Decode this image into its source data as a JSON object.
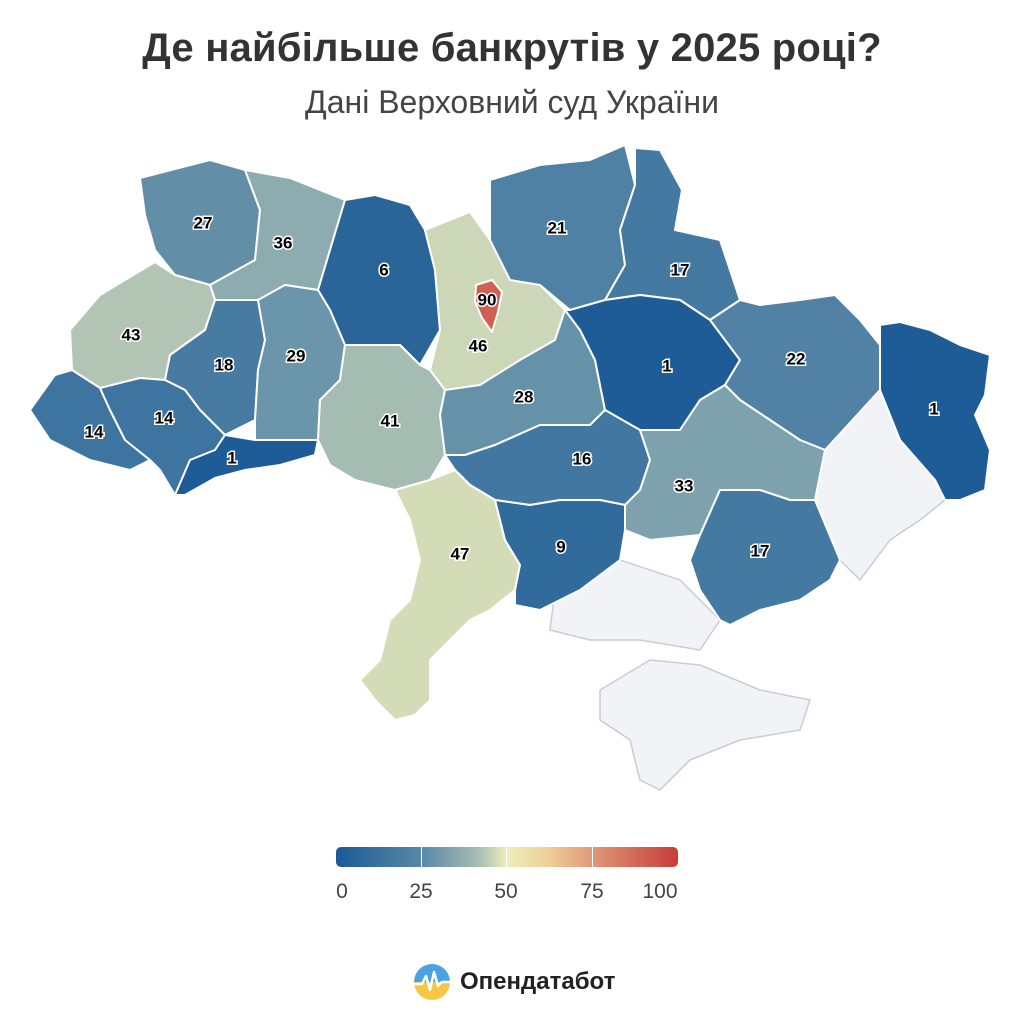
{
  "header": {
    "title": "Де найбільше банкрутів у 2025 році?",
    "subtitle": "Дані Верховний суд України"
  },
  "map_data": {
    "type": "choropleth",
    "regions": [
      {
        "name": "Volyn",
        "value": 27
      },
      {
        "name": "Rivne",
        "value": 36
      },
      {
        "name": "Zhytomyr",
        "value": 6
      },
      {
        "name": "Kyiv city",
        "value": 90
      },
      {
        "name": "Kyiv oblast",
        "value": 46
      },
      {
        "name": "Chernihiv",
        "value": 21
      },
      {
        "name": "Sumy",
        "value": 17
      },
      {
        "name": "Lviv",
        "value": 43
      },
      {
        "name": "Ternopil",
        "value": 18
      },
      {
        "name": "Khmelnytskyi",
        "value": 29
      },
      {
        "name": "Zakarpattia",
        "value": 14
      },
      {
        "name": "Ivano-Frankivsk",
        "value": 14
      },
      {
        "name": "Chernivtsi",
        "value": 1
      },
      {
        "name": "Vinnytsia",
        "value": 41
      },
      {
        "name": "Cherkasy",
        "value": 28
      },
      {
        "name": "Poltava",
        "value": 1
      },
      {
        "name": "Kharkiv",
        "value": 22
      },
      {
        "name": "Luhansk",
        "value": 1
      },
      {
        "name": "Kirovohrad",
        "value": 16
      },
      {
        "name": "Dnipropetrovsk",
        "value": 33
      },
      {
        "name": "Odesa",
        "value": 47
      },
      {
        "name": "Mykolaiv",
        "value": 9
      },
      {
        "name": "Zaporizhzhia",
        "value": 17
      }
    ],
    "no_data_color": "#f2f3f7",
    "color_scale": [
      "#1b5a96",
      "#5888a7",
      "#eeeeba",
      "#e7a07c",
      "#c63c38"
    ]
  },
  "legend": {
    "labels": [
      "0",
      "25",
      "50",
      "75",
      "100"
    ],
    "min": 0,
    "max": 100
  },
  "brand": {
    "name": "Опендатабот",
    "icon": "opendatabot-logo-icon"
  }
}
